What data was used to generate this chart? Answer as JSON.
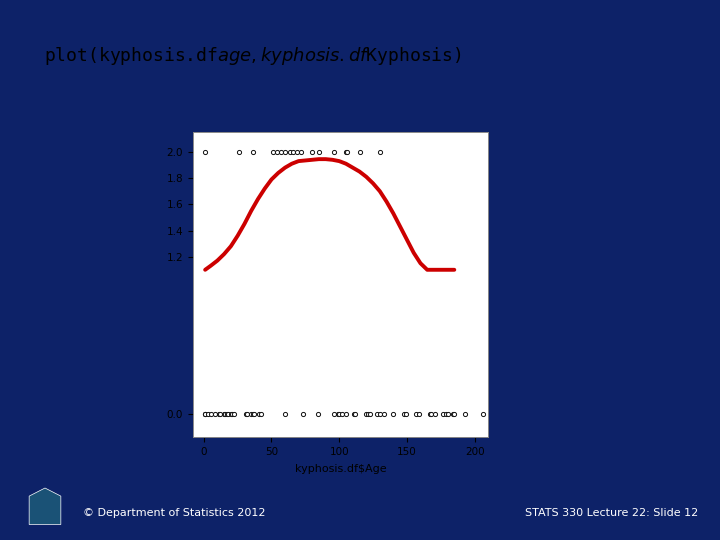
{
  "title_text": "plot(kyphosis.df$age,kyphosis.df$Kyphosis)",
  "xlabel": "kyphosis.df$Age",
  "ylabel": "",
  "xlim": [
    -8,
    210
  ],
  "ylim": [
    -0.18,
    2.15
  ],
  "yticks": [
    0.0,
    1.2,
    1.4,
    1.6,
    1.8,
    2.0
  ],
  "xticks": [
    0,
    50,
    100,
    150,
    200
  ],
  "bg_color": "#0d2268",
  "plot_bg": "#ffffff",
  "white_panel_bg": "#f5f5f5",
  "curve_color": "#cc0000",
  "point_color": "#111111",
  "title_bg": "#f0f0f0",
  "footer_left": "© Department of Statistics 2012",
  "footer_right": "STATS 330 Lecture 22: Slide 12",
  "absent_x": [
    1,
    1,
    1,
    3,
    5,
    8,
    11,
    12,
    15,
    16,
    17,
    18,
    20,
    21,
    22,
    31,
    32,
    35,
    36,
    37,
    41,
    42,
    60,
    73,
    84,
    96,
    99,
    100,
    102,
    105,
    111,
    112,
    120,
    121,
    123,
    128,
    130,
    133,
    140,
    148,
    149,
    157,
    159,
    167,
    168,
    171,
    177,
    179,
    180,
    184,
    185,
    193,
    206
  ],
  "present_x": [
    1,
    26,
    36,
    51,
    54,
    57,
    60,
    64,
    66,
    69,
    72,
    80,
    85,
    96,
    105,
    106,
    115,
    130
  ],
  "curve_x": [
    1,
    5,
    10,
    15,
    20,
    25,
    30,
    35,
    40,
    45,
    50,
    55,
    60,
    65,
    70,
    75,
    80,
    85,
    90,
    95,
    100,
    105,
    110,
    115,
    120,
    125,
    130,
    135,
    140,
    145,
    150,
    155,
    160,
    165,
    170,
    175,
    180,
    185
  ],
  "curve_y": [
    1.1,
    1.13,
    1.17,
    1.22,
    1.28,
    1.36,
    1.45,
    1.55,
    1.64,
    1.72,
    1.79,
    1.84,
    1.88,
    1.91,
    1.93,
    1.935,
    1.94,
    1.945,
    1.945,
    1.94,
    1.93,
    1.91,
    1.88,
    1.85,
    1.81,
    1.76,
    1.7,
    1.62,
    1.53,
    1.43,
    1.33,
    1.23,
    1.15,
    1.1,
    1.1,
    1.1,
    1.1,
    1.1
  ]
}
